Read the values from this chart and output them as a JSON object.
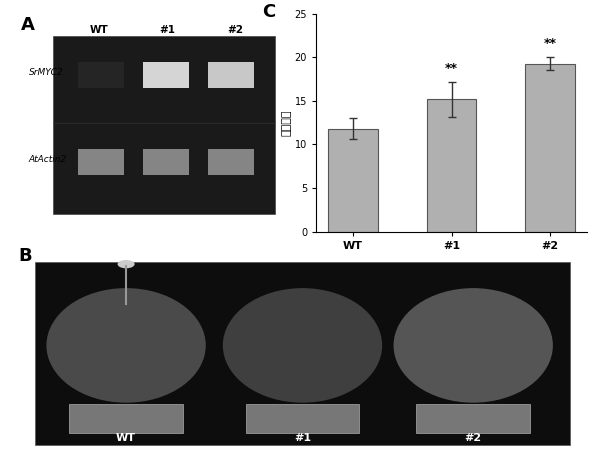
{
  "panel_labels": [
    "A",
    "B",
    "C"
  ],
  "bar_categories": [
    "WT",
    "#1",
    "#2"
  ],
  "bar_values": [
    11.8,
    15.2,
    19.3
  ],
  "bar_errors": [
    1.2,
    2.0,
    0.8
  ],
  "bar_color": "#b0b0b0",
  "bar_edge_color": "#555555",
  "ylim": [
    0,
    25
  ],
  "yticks": [
    0,
    5,
    10,
    15,
    20,
    25
  ],
  "ylabel": "总叶片数",
  "significance": [
    "",
    "**",
    "**"
  ],
  "gel_bg_color": "#1a1a1a",
  "photo_bg_color": "#111111",
  "gene1": "SrMYC2",
  "gene2": "AtActin2",
  "bar_width": 0.5,
  "fig_bg_color": "#f0f0f0"
}
